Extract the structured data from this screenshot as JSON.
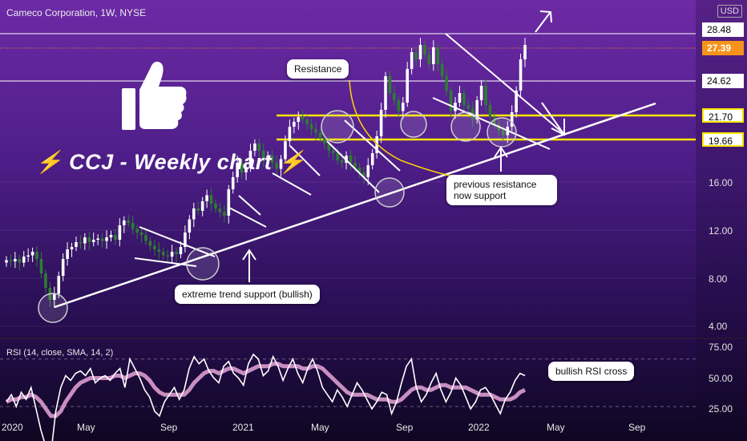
{
  "header": {
    "symbol_title": "Cameco Corporation, 1W, NYSE",
    "currency": "USD"
  },
  "banner_text": "⚡ CCJ - Weekly chart ⚡",
  "annotations": {
    "resistance": "Resistance",
    "previous_support": "previous resistance now support",
    "trend_support": "extreme trend support (bullish)",
    "rsi_cross": "bullish RSI cross"
  },
  "rsi_panel": {
    "title": "RSI (14, close, SMA, 14, 2)"
  },
  "colors": {
    "bull": "#ffffff",
    "bear": "#2e7d32",
    "level": "#ffe600",
    "rsi": "#ffffff",
    "rsi_ma": "#e7a6d8",
    "price_tag": "#f7931a"
  },
  "chart_data": {
    "type": "candlestick",
    "x_ticks": [
      "2020",
      "May",
      "Sep",
      "2021",
      "May",
      "Sep",
      "2022",
      "May",
      "Sep"
    ],
    "price_axis_ticks": [
      "28.48",
      "27.39",
      "24.62",
      "21.70",
      "19.66",
      "16.00",
      "12.00",
      "8.00",
      "4.00"
    ],
    "rsi_axis_ticks": [
      "75.00",
      "50.00",
      "25.00"
    ],
    "price_tags": [
      {
        "value": "28.48",
        "style": "outline"
      },
      {
        "value": "27.39",
        "style": "last"
      },
      {
        "value": "24.62",
        "style": "outline"
      },
      {
        "value": "21.70",
        "style": "level"
      },
      {
        "value": "19.66",
        "style": "level"
      }
    ],
    "support_resistance_levels": [
      21.7,
      19.66
    ],
    "trendline": {
      "from": [
        "2020",
        5.0
      ],
      "to": [
        "2022-08",
        22.5
      ]
    },
    "close_path": [
      9.5,
      9.4,
      9.6,
      9.3,
      9.8,
      9.9,
      10.2,
      9.6,
      8.4,
      7.2,
      6.2,
      6.7,
      8.2,
      9.6,
      10.4,
      10.6,
      11.0,
      10.9,
      11.4,
      11.0,
      11.2,
      11.3,
      11.1,
      11.4,
      11.6,
      11.2,
      12.4,
      12.8,
      12.6,
      12.1,
      11.8,
      11.6,
      11.1,
      10.7,
      10.4,
      10.2,
      9.9,
      9.8,
      10.2,
      10.0,
      10.6,
      11.8,
      12.9,
      13.8,
      13.6,
      14.4,
      14.9,
      14.2,
      13.8,
      13.5,
      13.2,
      15.4,
      16.4,
      17.6,
      16.8,
      17.2,
      18.6,
      19.2,
      18.6,
      17.9,
      18.2,
      17.6,
      17.1,
      17.9,
      19.4,
      20.6,
      21.0,
      21.4,
      21.2,
      20.8,
      20.4,
      20.1,
      19.6,
      19.2,
      18.6,
      18.4,
      17.8,
      17.6,
      18.2,
      17.6,
      17.2,
      16.8,
      16.4,
      17.4,
      18.4,
      19.8,
      22.0,
      24.8,
      23.4,
      22.8,
      21.9,
      22.6,
      25.4,
      26.8,
      26.2,
      27.4,
      26.6,
      25.8,
      27.2,
      25.8,
      24.8,
      23.6,
      21.9,
      22.6,
      23.4,
      22.4,
      22.1,
      21.2,
      22.8,
      24.0,
      22.4,
      21.4,
      20.8,
      20.3,
      19.9,
      20.6,
      21.8,
      23.6,
      26.2,
      27.4
    ],
    "rsi_path": [
      52,
      55,
      50,
      56,
      53,
      58,
      49,
      40,
      33,
      30,
      48,
      58,
      63,
      61,
      64,
      65,
      63,
      66,
      60,
      62,
      63,
      61,
      64,
      66,
      58,
      70,
      66,
      62,
      57,
      54,
      48,
      46,
      52,
      55,
      58,
      53,
      57,
      66,
      71,
      68,
      70,
      65,
      62,
      60,
      67,
      69,
      64,
      62,
      59,
      68,
      72,
      70,
      63,
      65,
      71,
      67,
      61,
      66,
      70,
      64,
      60,
      66,
      70,
      65,
      58,
      55,
      52,
      57,
      54,
      50,
      55,
      60,
      57,
      53,
      49,
      52,
      56,
      55,
      47,
      52,
      60,
      67,
      70,
      58,
      52,
      55,
      60,
      64,
      57,
      52,
      56,
      62,
      59,
      54,
      49,
      52,
      57,
      58,
      55,
      51,
      47,
      53,
      56,
      61,
      64,
      63
    ],
    "rsi_ma_path": [
      52,
      53,
      53,
      54,
      54,
      55,
      54,
      52,
      49,
      46,
      46,
      48,
      52,
      55,
      58,
      60,
      61,
      62,
      62,
      62,
      62,
      62,
      63,
      63,
      62,
      63,
      64,
      64,
      63,
      61,
      58,
      56,
      55,
      55,
      55,
      55,
      55,
      57,
      60,
      62,
      64,
      65,
      65,
      64,
      65,
      66,
      66,
      65,
      64,
      65,
      66,
      67,
      67,
      67,
      68,
      68,
      67,
      67,
      67,
      67,
      66,
      66,
      67,
      67,
      66,
      64,
      62,
      60,
      58,
      56,
      55,
      55,
      55,
      55,
      54,
      53,
      53,
      53,
      52,
      52,
      53,
      55,
      57,
      58,
      58,
      57,
      57,
      58,
      59,
      59,
      58,
      58,
      58,
      58,
      57,
      56,
      55,
      55,
      55,
      54,
      53,
      53,
      53,
      54,
      56,
      57
    ]
  }
}
